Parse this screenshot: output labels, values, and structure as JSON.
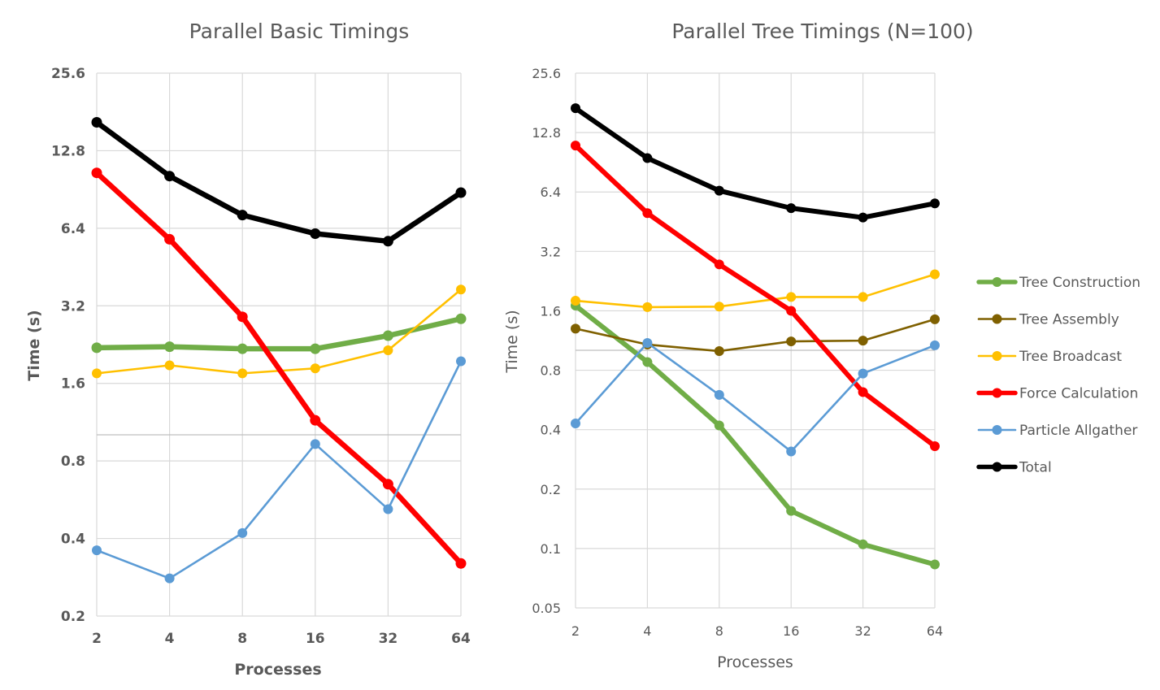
{
  "chart_data": [
    {
      "type": "line",
      "title": "Parallel Basic Timings",
      "xlabel": "Processes",
      "ylabel": "Time (s)",
      "y_scale": "log2",
      "x_scale": "log2",
      "categories": [
        "2",
        "4",
        "8",
        "16",
        "32",
        "64"
      ],
      "x_ticks": [
        "2",
        "4",
        "8",
        "16",
        "32",
        "64"
      ],
      "y_ticks": [
        "0.2",
        "0.4",
        "0.8",
        "1.6",
        "3.2",
        "6.4",
        "12.8",
        "25.6"
      ],
      "ylim": [
        0.2,
        25.6
      ],
      "grid": true,
      "series": [
        {
          "name": "Tree Construction",
          "color": "#70ad47",
          "values": [
            2.2,
            2.22,
            2.18,
            2.18,
            2.45,
            2.85
          ]
        },
        {
          "name": "Tree Broadcast",
          "color": "#ffc000",
          "values": [
            1.75,
            1.88,
            1.75,
            1.83,
            2.15,
            3.7
          ]
        },
        {
          "name": "Force Calculation",
          "color": "#ff0000",
          "values": [
            10.5,
            5.8,
            2.9,
            1.15,
            0.65,
            0.32
          ]
        },
        {
          "name": "Particle Allgather",
          "color": "#5b9bd5",
          "values": [
            0.36,
            0.28,
            0.42,
            0.93,
            0.52,
            1.95
          ]
        },
        {
          "name": "Total",
          "color": "#000000",
          "values": [
            16.5,
            10.2,
            7.2,
            6.1,
            5.7,
            8.8
          ]
        }
      ]
    },
    {
      "type": "line",
      "title": "Parallel Tree Timings (N=100)",
      "xlabel": "Processes",
      "ylabel": "Time (s)",
      "y_scale": "log2",
      "x_scale": "log2",
      "categories": [
        "2",
        "4",
        "8",
        "16",
        "32",
        "64"
      ],
      "x_ticks": [
        "2",
        "4",
        "8",
        "16",
        "32",
        "64"
      ],
      "y_ticks": [
        "0.05",
        "0.1",
        "0.2",
        "0.4",
        "0.8",
        "1.6",
        "3.2",
        "6.4",
        "12.8",
        "25.6"
      ],
      "ylim": [
        0.05,
        25.6
      ],
      "grid": true,
      "legend_position": "right",
      "series": [
        {
          "name": "Tree Construction",
          "color": "#70ad47",
          "values": [
            1.7,
            0.88,
            0.42,
            0.155,
            0.105,
            0.083
          ]
        },
        {
          "name": "Tree Assembly",
          "color": "#7f6000",
          "values": [
            1.3,
            1.08,
            1.0,
            1.12,
            1.13,
            1.45
          ]
        },
        {
          "name": "Tree Broadcast",
          "color": "#ffc000",
          "values": [
            1.8,
            1.67,
            1.68,
            1.88,
            1.88,
            2.45
          ]
        },
        {
          "name": "Force Calculation",
          "color": "#ff0000",
          "values": [
            11.0,
            5.0,
            2.75,
            1.6,
            0.62,
            0.33
          ]
        },
        {
          "name": "Particle Allgather",
          "color": "#5b9bd5",
          "values": [
            0.43,
            1.1,
            0.6,
            0.31,
            0.77,
            1.07
          ]
        },
        {
          "name": "Total",
          "color": "#000000",
          "values": [
            17.0,
            9.5,
            6.5,
            5.3,
            4.75,
            5.6
          ]
        }
      ]
    }
  ],
  "legend": [
    {
      "name": "Tree Construction",
      "color": "#70ad47",
      "weight": "thick"
    },
    {
      "name": "Tree Assembly",
      "color": "#7f6000",
      "weight": "thin"
    },
    {
      "name": "Tree Broadcast",
      "color": "#ffc000",
      "weight": "thin"
    },
    {
      "name": "Force Calculation",
      "color": "#ff0000",
      "weight": "thick"
    },
    {
      "name": "Particle Allgather",
      "color": "#5b9bd5",
      "weight": "thin"
    },
    {
      "name": "Total",
      "color": "#000000",
      "weight": "thick"
    }
  ]
}
